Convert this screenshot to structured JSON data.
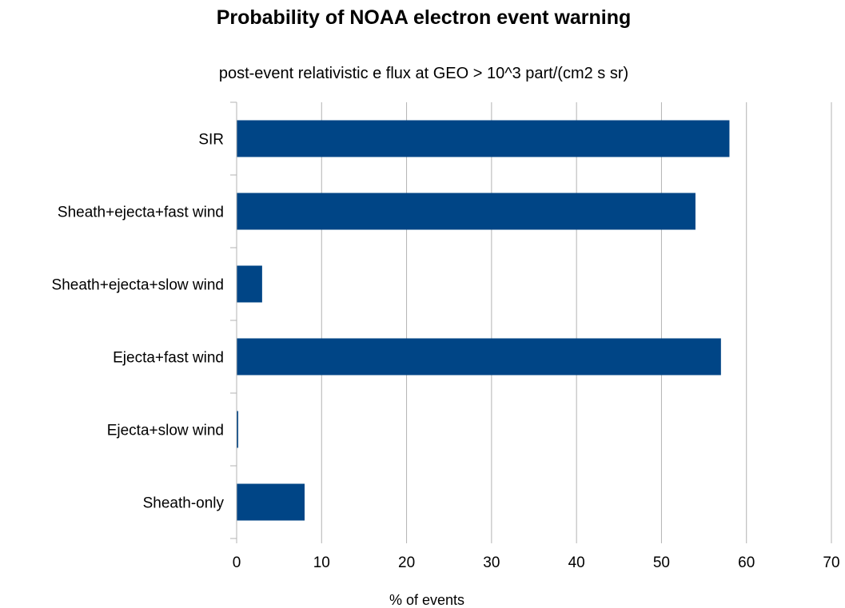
{
  "chart_data": {
    "type": "bar",
    "orientation": "horizontal",
    "title": "Probability of NOAA electron event warning",
    "subtitle": "post-event relativistic e flux at GEO > 10^3 part/(cm2 s sr)",
    "categories": [
      "SIR",
      "Sheath+ejecta+fast wind",
      "Sheath+ejecta+slow wind",
      "Ejecta+fast wind",
      "Ejecta+slow wind",
      "Sheath-only"
    ],
    "values": [
      58,
      54,
      3,
      57,
      0,
      8
    ],
    "xlabel": "% of events",
    "ylabel": "",
    "xlim": [
      0,
      70
    ],
    "xticks": [
      "0",
      "10",
      "20",
      "30",
      "40",
      "50",
      "60",
      "70"
    ],
    "grid": true,
    "legend": "none",
    "colors": {
      "bar": "#004586",
      "grid": "#b3b3b3",
      "axis": "#b3b3b3",
      "text": "#000000"
    }
  }
}
